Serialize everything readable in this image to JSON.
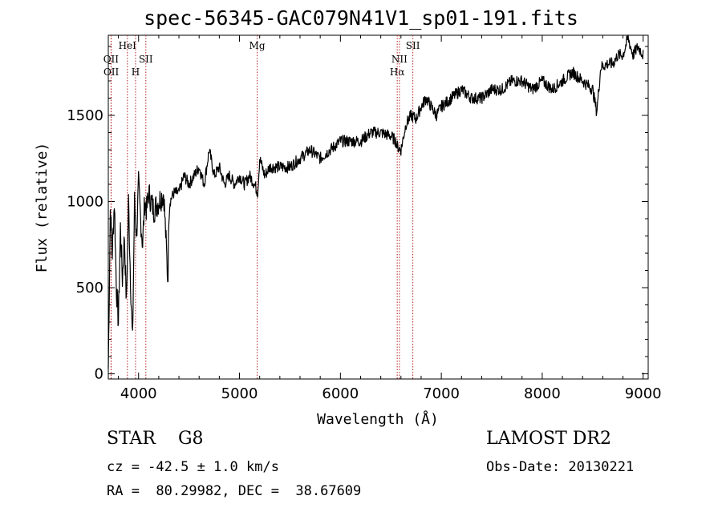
{
  "chart_data": {
    "type": "line",
    "title": "spec-56345-GAC079N41V1_sp01-191.fits",
    "xlabel": "Wavelength (Å)",
    "ylabel": "Flux (relative)",
    "xlim": [
      3700,
      9050
    ],
    "ylim": [
      -30,
      1965
    ],
    "xticks": [
      4000,
      5000,
      6000,
      7000,
      8000,
      9000
    ],
    "yticks": [
      0,
      500,
      1000,
      1500
    ],
    "line_color": "#000000",
    "marker_color": "#b22222",
    "spectrum": {
      "x": [
        3700,
        3720,
        3740,
        3760,
        3780,
        3800,
        3820,
        3840,
        3860,
        3880,
        3900,
        3920,
        3940,
        3960,
        3980,
        4000,
        4020,
        4040,
        4060,
        4080,
        4100,
        4150,
        4200,
        4250,
        4290,
        4300,
        4310,
        4350,
        4400,
        4450,
        4500,
        4550,
        4600,
        4650,
        4700,
        4750,
        4800,
        4850,
        4900,
        4950,
        5000,
        5050,
        5100,
        5150,
        5180,
        5200,
        5250,
        5300,
        5400,
        5500,
        5600,
        5700,
        5800,
        5900,
        6000,
        6100,
        6200,
        6300,
        6400,
        6500,
        6550,
        6562,
        6600,
        6650,
        6700,
        6750,
        6800,
        6850,
        6900,
        6950,
        7000,
        7100,
        7200,
        7300,
        7400,
        7500,
        7600,
        7700,
        7800,
        7900,
        8000,
        8100,
        8200,
        8300,
        8400,
        8500,
        8540,
        8580,
        8650,
        8700,
        8750,
        8800,
        8850,
        8900,
        8950,
        9000
      ],
      "y": [
        30,
        950,
        700,
        1000,
        500,
        300,
        850,
        550,
        800,
        400,
        1000,
        550,
        180,
        1000,
        800,
        1100,
        900,
        750,
        1000,
        950,
        1050,
        950,
        1000,
        1050,
        530,
        900,
        1000,
        1050,
        1050,
        1150,
        1100,
        1150,
        1200,
        1100,
        1300,
        1150,
        1200,
        1100,
        1150,
        1100,
        1150,
        1100,
        1150,
        1100,
        1050,
        1250,
        1150,
        1200,
        1200,
        1200,
        1250,
        1300,
        1250,
        1300,
        1350,
        1350,
        1350,
        1400,
        1400,
        1380,
        1350,
        1320,
        1300,
        1450,
        1500,
        1480,
        1550,
        1600,
        1550,
        1500,
        1550,
        1600,
        1650,
        1600,
        1600,
        1650,
        1650,
        1700,
        1700,
        1650,
        1700,
        1650,
        1700,
        1750,
        1700,
        1650,
        1520,
        1780,
        1800,
        1800,
        1850,
        1850,
        1950,
        1850,
        1900,
        1850
      ]
    },
    "spectral_lines": [
      {
        "wavelength": 3727,
        "label": "OII",
        "row": 1
      },
      {
        "wavelength": 3729,
        "label": "OII",
        "row": 2
      },
      {
        "wavelength": 3889,
        "label": "HeI",
        "row": 0
      },
      {
        "wavelength": 3970,
        "label": "H",
        "row": 2
      },
      {
        "wavelength": 4072,
        "label": "SII",
        "row": 1
      },
      {
        "wavelength": 5175,
        "label": "Mg",
        "row": 0
      },
      {
        "wavelength": 6563,
        "label": "Hα",
        "row": 2
      },
      {
        "wavelength": 6585,
        "label": "NII",
        "row": 1
      },
      {
        "wavelength": 6718,
        "label": "SII",
        "row": 0
      }
    ]
  },
  "info": {
    "object_class": "STAR    G8",
    "survey": "LAMOST DR2",
    "redshift": "cz = -42.5 ± 1.0 km/s",
    "obs_date": "Obs-Date: 20130221",
    "coords": "RA =  80.29982, DEC =  38.67609"
  }
}
